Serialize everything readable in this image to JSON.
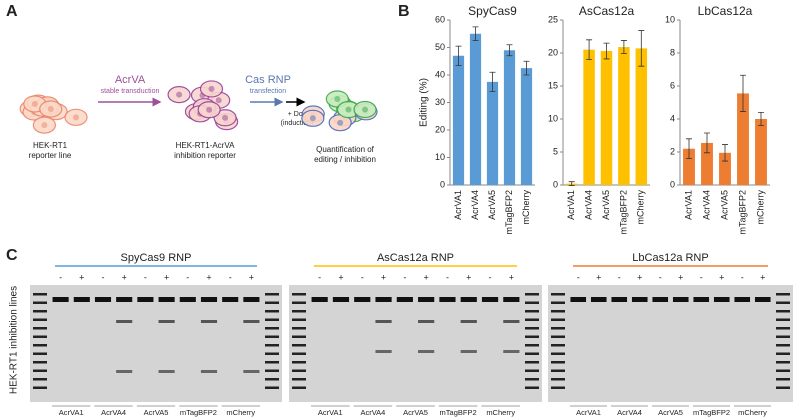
{
  "panel_labels": [
    "A",
    "B",
    "C"
  ],
  "diagram": {
    "arrow1": {
      "title": "AcrVA",
      "subtitle": "stable transduction"
    },
    "arrow2": {
      "title": "Cas RNP",
      "subtitle": "transfection"
    },
    "arrow3": {
      "title": "+ Dox",
      "subtitle": "(induction)"
    },
    "stage1": [
      "HEK-RT1",
      "reporter line"
    ],
    "stage2": [
      "HEK-RT1-AcrVA",
      "inhibition reporter"
    ],
    "stage3": [
      "Quantification of",
      "editing / inhibition"
    ]
  },
  "chart_data": [
    {
      "type": "bar",
      "title": "SpyCas9",
      "ylabel": "Editing (%)",
      "categories": [
        "AcrVA1",
        "AcrVA4",
        "AcrVA5",
        "mTagBFP2",
        "mCherry"
      ],
      "values": [
        47,
        55,
        37.5,
        49,
        42.5
      ],
      "errors": [
        3.5,
        2.5,
        3.5,
        2,
        2.5
      ],
      "color": "#5b9bd5",
      "ylim": [
        0,
        60
      ],
      "yticks": [
        0,
        10,
        20,
        30,
        40,
        50,
        60
      ]
    },
    {
      "type": "bar",
      "title": "AsCas12a",
      "categories": [
        "AcrVA1",
        "AcrVA4",
        "AcrVA5",
        "mTagBFP2",
        "mCherry"
      ],
      "values": [
        0.2,
        20.5,
        20.3,
        20.9,
        20.7
      ],
      "errors": [
        0.3,
        1.5,
        1.2,
        1,
        2.7
      ],
      "color": "#ffc000",
      "ylim": [
        0,
        25
      ],
      "yticks": [
        0,
        5,
        10,
        15,
        20,
        25
      ]
    },
    {
      "type": "bar",
      "title": "LbCas12a",
      "categories": [
        "AcrVA1",
        "AcrVA4",
        "AcrVA5",
        "mTagBFP2",
        "mCherry"
      ],
      "values": [
        2.2,
        2.55,
        1.95,
        5.55,
        4.0
      ],
      "errors": [
        0.6,
        0.6,
        0.5,
        1.1,
        0.4
      ],
      "color": "#ed7d31",
      "ylim": [
        0,
        10
      ],
      "yticks": [
        0,
        2,
        4,
        6,
        8,
        10
      ]
    }
  ],
  "gel": {
    "ylabel": "HEK-RT1 inhibition lines",
    "treatments": [
      "-",
      "+"
    ],
    "panels": [
      {
        "title": "SpyCas9 RNP",
        "color": "#5b9bd5",
        "groups": [
          "AcrVA1",
          "AcrVA4",
          "AcrVA5",
          "mTagBFP2",
          "mCherry"
        ]
      },
      {
        "title": "AsCas12a RNP",
        "color": "#ffc000",
        "groups": [
          "AcrVA1",
          "AcrVA4",
          "AcrVA5",
          "mTagBFP2",
          "mCherry"
        ]
      },
      {
        "title": "LbCas12a RNP",
        "color": "#ed7d31",
        "groups": [
          "AcrVA1",
          "AcrVA4",
          "AcrVA5",
          "mTagBFP2",
          "mCherry"
        ]
      }
    ]
  }
}
